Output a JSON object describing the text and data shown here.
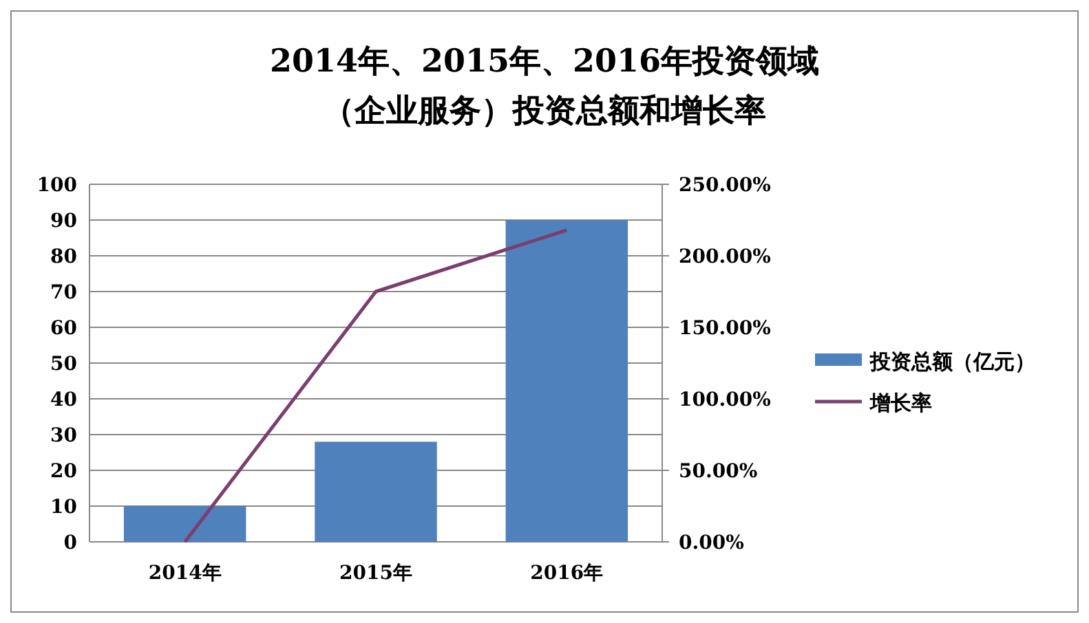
{
  "chart_data": {
    "type": "bar",
    "title": "2014年、2015年、2016年投资领域（企业服务）投资总额和增长率",
    "categories": [
      "2014年",
      "2015年",
      "2016年"
    ],
    "series": [
      {
        "name": "投资总额（亿元）",
        "color": "#4f81bd",
        "values": [
          10,
          28,
          90
        ]
      },
      {
        "name": "增长率",
        "type": "line",
        "color": "#7b3f6e",
        "axis": "y2",
        "values": [
          0,
          175,
          218
        ]
      }
    ],
    "ylim": [
      0,
      100
    ],
    "yticks": [
      0,
      10,
      20,
      30,
      40,
      50,
      60,
      70,
      80,
      90,
      100
    ],
    "y2lim": [
      0,
      250
    ],
    "y2ticks": [
      {
        "value": 0,
        "label": "0.00%"
      },
      {
        "value": 50,
        "label": "50.00%"
      },
      {
        "value": 100,
        "label": "100.00%"
      },
      {
        "value": 150,
        "label": "150.00%"
      },
      {
        "value": 200,
        "label": "200.00%"
      },
      {
        "value": 250,
        "label": "250.00%"
      }
    ],
    "grid": "y",
    "legend": "right",
    "marker": "none",
    "line_style": "solid"
  }
}
